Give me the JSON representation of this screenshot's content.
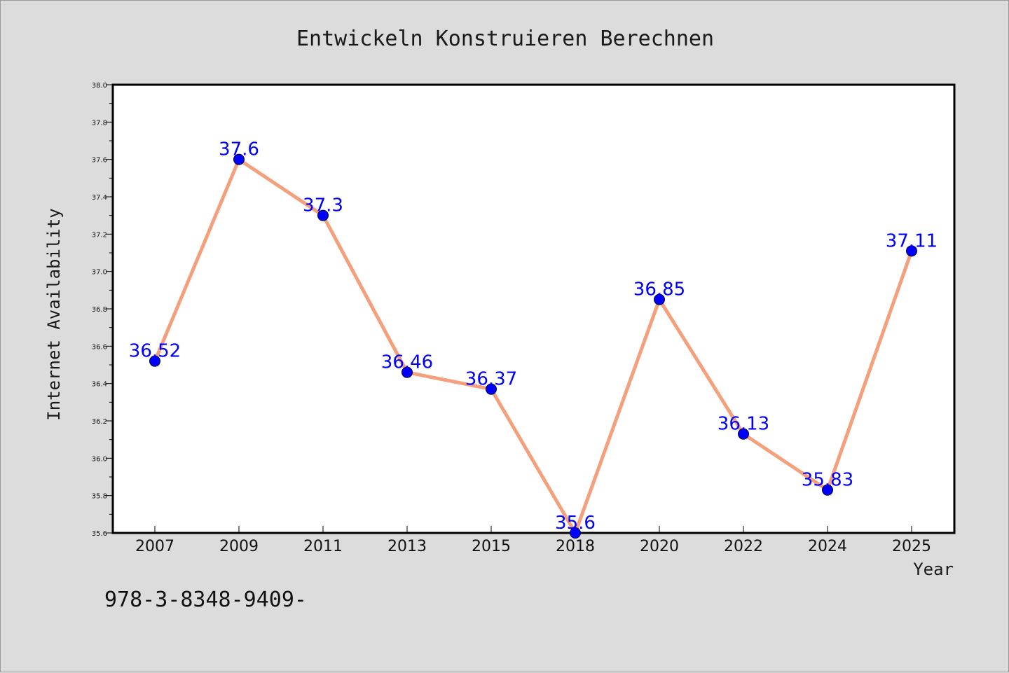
{
  "colors": {
    "background": "#dcdcdc",
    "plot_background": "#ffffff",
    "line": "#f4a07c",
    "marker": "#0000ff",
    "data_label": "#0000ff"
  },
  "footer": {
    "isbn": "978-3-8348-9409-"
  },
  "chart_data": {
    "type": "line",
    "title": "Entwickeln Konstruieren Berechnen",
    "xlabel": "Year",
    "ylabel": "Internet Availability",
    "categories": [
      "2007",
      "2009",
      "2011",
      "2013",
      "2015",
      "2018",
      "2020",
      "2022",
      "2024",
      "2025"
    ],
    "series": [
      {
        "values": [
          36.52,
          37.6,
          37.3,
          36.46,
          36.37,
          35.6,
          36.85,
          36.13,
          35.83,
          37.11
        ],
        "labels": [
          "36.52",
          "37.6",
          "37.3",
          "36.46",
          "36.37",
          "35.6",
          "36.85",
          "36.13",
          "35.83",
          "37.11"
        ]
      }
    ],
    "ylim": [
      35.6,
      38.0
    ],
    "yticks": [
      "35.6",
      "35.8",
      "36.0",
      "36.2",
      "36.4",
      "36.6",
      "36.8",
      "37.0",
      "37.2",
      "37.4",
      "37.6",
      "37.8",
      "38.0"
    ],
    "grid": false,
    "legend": "none"
  }
}
